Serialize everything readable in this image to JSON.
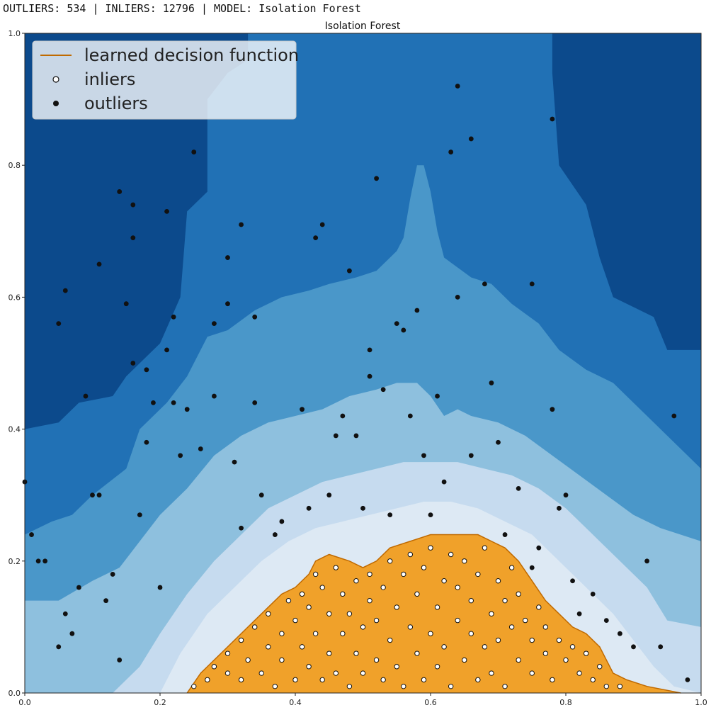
{
  "status_bar": {
    "outliers_label": "OUTLIERS:",
    "outliers_count": "534",
    "inliers_label": "INLIERS:",
    "inliers_count": "12796",
    "model_label": "MODEL:",
    "model_name": "Isolation Forest",
    "separator": "|"
  },
  "colors": {
    "level_darkest": "#0c4a8c",
    "level_dark": "#2171b5",
    "level_mid": "#4a97c9",
    "level_light": "#8ec0de",
    "level_lighter": "#c6dbef",
    "level_lightest": "#dde9f4",
    "decision_region": "#f0a12a",
    "decision_line": "#c06a00",
    "outlier_fill": "#111111",
    "inlier_fill": "#ffffff",
    "inlier_edge": "#111111"
  },
  "chart_data": {
    "type": "scatter",
    "title": "Isolation Forest",
    "xlabel": "",
    "ylabel": "",
    "xlim": [
      0.0,
      1.0
    ],
    "ylim": [
      0.0,
      1.0
    ],
    "xticks": [
      "0.0",
      "0.2",
      "0.4",
      "0.6",
      "0.8",
      "1.0"
    ],
    "yticks": [
      "0.0",
      "0.2",
      "0.4",
      "0.6",
      "0.8",
      "1.0"
    ],
    "grid": false,
    "legend": {
      "placement": "top-left",
      "entries": [
        {
          "label": "learned decision function",
          "marker": "line",
          "color": "#f0a12a"
        },
        {
          "label": "inliers",
          "marker": "open-circle",
          "color": "#ffffff"
        },
        {
          "label": "outliers",
          "marker": "filled-circle",
          "color": "#111111"
        }
      ]
    },
    "contour_levels": [
      {
        "name": "level_dark",
        "boundary": [
          [
            0.0,
            0.4
          ],
          [
            0.05,
            0.41
          ],
          [
            0.08,
            0.44
          ],
          [
            0.13,
            0.45
          ],
          [
            0.15,
            0.48
          ],
          [
            0.2,
            0.53
          ],
          [
            0.23,
            0.6
          ],
          [
            0.24,
            0.73
          ],
          [
            0.27,
            0.76
          ],
          [
            0.27,
            0.9
          ],
          [
            0.3,
            0.94
          ],
          [
            0.33,
            0.96
          ],
          [
            0.33,
            1.0
          ],
          [
            0.78,
            1.0
          ],
          [
            0.78,
            0.94
          ],
          [
            0.79,
            0.8
          ],
          [
            0.83,
            0.74
          ],
          [
            0.85,
            0.66
          ],
          [
            0.87,
            0.6
          ],
          [
            0.93,
            0.57
          ],
          [
            0.95,
            0.52
          ],
          [
            1.0,
            0.52
          ]
        ]
      },
      {
        "name": "level_mid",
        "boundary": [
          [
            0.0,
            0.24
          ],
          [
            0.04,
            0.26
          ],
          [
            0.07,
            0.27
          ],
          [
            0.1,
            0.3
          ],
          [
            0.15,
            0.34
          ],
          [
            0.17,
            0.4
          ],
          [
            0.21,
            0.44
          ],
          [
            0.24,
            0.48
          ],
          [
            0.27,
            0.54
          ],
          [
            0.3,
            0.55
          ],
          [
            0.34,
            0.58
          ],
          [
            0.38,
            0.6
          ],
          [
            0.42,
            0.61
          ],
          [
            0.45,
            0.62
          ],
          [
            0.49,
            0.63
          ],
          [
            0.52,
            0.64
          ],
          [
            0.55,
            0.67
          ],
          [
            0.56,
            0.69
          ],
          [
            0.57,
            0.75
          ],
          [
            0.58,
            0.8
          ],
          [
            0.59,
            0.8
          ],
          [
            0.6,
            0.76
          ],
          [
            0.61,
            0.7
          ],
          [
            0.62,
            0.66
          ],
          [
            0.66,
            0.63
          ],
          [
            0.69,
            0.62
          ],
          [
            0.72,
            0.59
          ],
          [
            0.76,
            0.56
          ],
          [
            0.79,
            0.52
          ],
          [
            0.83,
            0.49
          ],
          [
            0.87,
            0.47
          ],
          [
            0.9,
            0.44
          ],
          [
            0.93,
            0.41
          ],
          [
            0.96,
            0.38
          ],
          [
            1.0,
            0.34
          ]
        ]
      },
      {
        "name": "level_light",
        "boundary": [
          [
            0.0,
            0.14
          ],
          [
            0.05,
            0.14
          ],
          [
            0.1,
            0.17
          ],
          [
            0.14,
            0.19
          ],
          [
            0.17,
            0.23
          ],
          [
            0.2,
            0.27
          ],
          [
            0.24,
            0.31
          ],
          [
            0.28,
            0.36
          ],
          [
            0.32,
            0.39
          ],
          [
            0.36,
            0.41
          ],
          [
            0.4,
            0.42
          ],
          [
            0.44,
            0.43
          ],
          [
            0.48,
            0.45
          ],
          [
            0.52,
            0.46
          ],
          [
            0.55,
            0.47
          ],
          [
            0.58,
            0.47
          ],
          [
            0.6,
            0.45
          ],
          [
            0.62,
            0.42
          ],
          [
            0.64,
            0.43
          ],
          [
            0.66,
            0.42
          ],
          [
            0.7,
            0.41
          ],
          [
            0.74,
            0.39
          ],
          [
            0.78,
            0.36
          ],
          [
            0.82,
            0.33
          ],
          [
            0.86,
            0.3
          ],
          [
            0.9,
            0.27
          ],
          [
            0.94,
            0.25
          ],
          [
            1.0,
            0.23
          ]
        ]
      },
      {
        "name": "level_lighter",
        "boundary": [
          [
            0.13,
            0.0
          ],
          [
            0.17,
            0.04
          ],
          [
            0.2,
            0.09
          ],
          [
            0.24,
            0.15
          ],
          [
            0.28,
            0.2
          ],
          [
            0.32,
            0.24
          ],
          [
            0.36,
            0.28
          ],
          [
            0.4,
            0.3
          ],
          [
            0.44,
            0.32
          ],
          [
            0.48,
            0.33
          ],
          [
            0.52,
            0.34
          ],
          [
            0.56,
            0.35
          ],
          [
            0.6,
            0.35
          ],
          [
            0.64,
            0.35
          ],
          [
            0.68,
            0.34
          ],
          [
            0.72,
            0.33
          ],
          [
            0.76,
            0.31
          ],
          [
            0.8,
            0.28
          ],
          [
            0.84,
            0.24
          ],
          [
            0.88,
            0.2
          ],
          [
            0.92,
            0.16
          ],
          [
            0.95,
            0.11
          ],
          [
            1.0,
            0.1
          ]
        ]
      },
      {
        "name": "level_lightest",
        "boundary": [
          [
            0.2,
            0.0
          ],
          [
            0.23,
            0.06
          ],
          [
            0.27,
            0.12
          ],
          [
            0.31,
            0.16
          ],
          [
            0.35,
            0.2
          ],
          [
            0.39,
            0.23
          ],
          [
            0.43,
            0.25
          ],
          [
            0.47,
            0.26
          ],
          [
            0.51,
            0.27
          ],
          [
            0.55,
            0.28
          ],
          [
            0.59,
            0.29
          ],
          [
            0.63,
            0.29
          ],
          [
            0.67,
            0.28
          ],
          [
            0.71,
            0.26
          ],
          [
            0.75,
            0.24
          ],
          [
            0.79,
            0.2
          ],
          [
            0.83,
            0.16
          ],
          [
            0.87,
            0.12
          ],
          [
            0.9,
            0.08
          ],
          [
            0.93,
            0.04
          ],
          [
            0.96,
            0.01
          ],
          [
            1.0,
            0.0
          ]
        ]
      }
    ],
    "decision_region": [
      [
        0.24,
        0.0
      ],
      [
        0.26,
        0.03
      ],
      [
        0.29,
        0.06
      ],
      [
        0.31,
        0.08
      ],
      [
        0.34,
        0.11
      ],
      [
        0.36,
        0.13
      ],
      [
        0.38,
        0.15
      ],
      [
        0.4,
        0.16
      ],
      [
        0.42,
        0.18
      ],
      [
        0.43,
        0.2
      ],
      [
        0.45,
        0.21
      ],
      [
        0.48,
        0.2
      ],
      [
        0.5,
        0.19
      ],
      [
        0.52,
        0.2
      ],
      [
        0.54,
        0.22
      ],
      [
        0.57,
        0.23
      ],
      [
        0.6,
        0.24
      ],
      [
        0.63,
        0.24
      ],
      [
        0.67,
        0.24
      ],
      [
        0.69,
        0.23
      ],
      [
        0.71,
        0.22
      ],
      [
        0.73,
        0.2
      ],
      [
        0.75,
        0.17
      ],
      [
        0.77,
        0.14
      ],
      [
        0.79,
        0.12
      ],
      [
        0.81,
        0.1
      ],
      [
        0.83,
        0.09
      ],
      [
        0.85,
        0.07
      ],
      [
        0.87,
        0.03
      ],
      [
        0.89,
        0.02
      ],
      [
        0.92,
        0.01
      ],
      [
        0.97,
        0.0
      ]
    ],
    "outliers": [
      [
        0.0,
        0.32
      ],
      [
        0.01,
        0.24
      ],
      [
        0.02,
        0.2
      ],
      [
        0.03,
        0.2
      ],
      [
        0.05,
        0.07
      ],
      [
        0.06,
        0.61
      ],
      [
        0.05,
        0.56
      ],
      [
        0.06,
        0.12
      ],
      [
        0.07,
        0.09
      ],
      [
        0.08,
        0.16
      ],
      [
        0.09,
        0.45
      ],
      [
        0.1,
        0.3
      ],
      [
        0.11,
        0.3
      ],
      [
        0.11,
        0.65
      ],
      [
        0.12,
        0.14
      ],
      [
        0.13,
        0.18
      ],
      [
        0.14,
        0.05
      ],
      [
        0.14,
        0.76
      ],
      [
        0.15,
        0.59
      ],
      [
        0.16,
        0.69
      ],
      [
        0.16,
        0.74
      ],
      [
        0.16,
        0.5
      ],
      [
        0.17,
        0.27
      ],
      [
        0.18,
        0.49
      ],
      [
        0.18,
        0.38
      ],
      [
        0.19,
        0.44
      ],
      [
        0.2,
        0.16
      ],
      [
        0.21,
        0.73
      ],
      [
        0.21,
        0.52
      ],
      [
        0.22,
        0.57
      ],
      [
        0.22,
        0.44
      ],
      [
        0.23,
        0.36
      ],
      [
        0.24,
        0.43
      ],
      [
        0.25,
        0.82
      ],
      [
        0.26,
        0.37
      ],
      [
        0.28,
        0.56
      ],
      [
        0.28,
        0.45
      ],
      [
        0.3,
        0.66
      ],
      [
        0.3,
        0.59
      ],
      [
        0.31,
        0.35
      ],
      [
        0.32,
        0.71
      ],
      [
        0.32,
        0.25
      ],
      [
        0.34,
        0.57
      ],
      [
        0.34,
        0.44
      ],
      [
        0.35,
        0.3
      ],
      [
        0.37,
        0.24
      ],
      [
        0.38,
        0.26
      ],
      [
        0.41,
        0.43
      ],
      [
        0.42,
        0.28
      ],
      [
        0.43,
        0.69
      ],
      [
        0.44,
        0.71
      ],
      [
        0.45,
        0.3
      ],
      [
        0.46,
        0.39
      ],
      [
        0.47,
        0.42
      ],
      [
        0.48,
        0.64
      ],
      [
        0.49,
        0.39
      ],
      [
        0.5,
        0.28
      ],
      [
        0.51,
        0.52
      ],
      [
        0.51,
        0.48
      ],
      [
        0.52,
        0.78
      ],
      [
        0.53,
        0.46
      ],
      [
        0.54,
        0.27
      ],
      [
        0.55,
        0.56
      ],
      [
        0.56,
        0.55
      ],
      [
        0.57,
        0.42
      ],
      [
        0.58,
        0.58
      ],
      [
        0.59,
        0.36
      ],
      [
        0.6,
        0.27
      ],
      [
        0.61,
        0.45
      ],
      [
        0.62,
        0.32
      ],
      [
        0.63,
        0.82
      ],
      [
        0.64,
        0.92
      ],
      [
        0.64,
        0.6
      ],
      [
        0.66,
        0.36
      ],
      [
        0.66,
        0.84
      ],
      [
        0.68,
        0.62
      ],
      [
        0.69,
        0.47
      ],
      [
        0.7,
        0.38
      ],
      [
        0.71,
        0.24
      ],
      [
        0.73,
        0.31
      ],
      [
        0.75,
        0.19
      ],
      [
        0.75,
        0.62
      ],
      [
        0.76,
        0.22
      ],
      [
        0.78,
        0.87
      ],
      [
        0.78,
        0.43
      ],
      [
        0.79,
        0.28
      ],
      [
        0.8,
        0.3
      ],
      [
        0.81,
        0.17
      ],
      [
        0.82,
        0.12
      ],
      [
        0.84,
        0.15
      ],
      [
        0.86,
        0.11
      ],
      [
        0.88,
        0.09
      ],
      [
        0.9,
        0.07
      ],
      [
        0.92,
        0.2
      ],
      [
        0.94,
        0.07
      ],
      [
        0.96,
        0.42
      ],
      [
        0.98,
        0.02
      ]
    ],
    "inliers": [
      [
        0.25,
        0.01
      ],
      [
        0.27,
        0.02
      ],
      [
        0.28,
        0.04
      ],
      [
        0.3,
        0.03
      ],
      [
        0.3,
        0.06
      ],
      [
        0.32,
        0.02
      ],
      [
        0.32,
        0.08
      ],
      [
        0.33,
        0.05
      ],
      [
        0.34,
        0.1
      ],
      [
        0.35,
        0.03
      ],
      [
        0.36,
        0.07
      ],
      [
        0.36,
        0.12
      ],
      [
        0.37,
        0.01
      ],
      [
        0.38,
        0.05
      ],
      [
        0.38,
        0.09
      ],
      [
        0.39,
        0.14
      ],
      [
        0.4,
        0.02
      ],
      [
        0.4,
        0.11
      ],
      [
        0.41,
        0.07
      ],
      [
        0.41,
        0.15
      ],
      [
        0.42,
        0.04
      ],
      [
        0.42,
        0.13
      ],
      [
        0.43,
        0.09
      ],
      [
        0.43,
        0.18
      ],
      [
        0.44,
        0.02
      ],
      [
        0.44,
        0.16
      ],
      [
        0.45,
        0.06
      ],
      [
        0.45,
        0.12
      ],
      [
        0.46,
        0.19
      ],
      [
        0.46,
        0.03
      ],
      [
        0.47,
        0.09
      ],
      [
        0.47,
        0.15
      ],
      [
        0.48,
        0.01
      ],
      [
        0.48,
        0.12
      ],
      [
        0.49,
        0.06
      ],
      [
        0.49,
        0.17
      ],
      [
        0.5,
        0.03
      ],
      [
        0.5,
        0.1
      ],
      [
        0.51,
        0.14
      ],
      [
        0.51,
        0.18
      ],
      [
        0.52,
        0.05
      ],
      [
        0.52,
        0.11
      ],
      [
        0.53,
        0.02
      ],
      [
        0.53,
        0.16
      ],
      [
        0.54,
        0.08
      ],
      [
        0.54,
        0.2
      ],
      [
        0.55,
        0.04
      ],
      [
        0.55,
        0.13
      ],
      [
        0.56,
        0.18
      ],
      [
        0.56,
        0.01
      ],
      [
        0.57,
        0.1
      ],
      [
        0.57,
        0.21
      ],
      [
        0.58,
        0.06
      ],
      [
        0.58,
        0.15
      ],
      [
        0.59,
        0.02
      ],
      [
        0.59,
        0.19
      ],
      [
        0.6,
        0.09
      ],
      [
        0.6,
        0.22
      ],
      [
        0.61,
        0.04
      ],
      [
        0.61,
        0.13
      ],
      [
        0.62,
        0.17
      ],
      [
        0.62,
        0.07
      ],
      [
        0.63,
        0.01
      ],
      [
        0.63,
        0.21
      ],
      [
        0.64,
        0.11
      ],
      [
        0.64,
        0.16
      ],
      [
        0.65,
        0.05
      ],
      [
        0.65,
        0.2
      ],
      [
        0.66,
        0.09
      ],
      [
        0.66,
        0.14
      ],
      [
        0.67,
        0.02
      ],
      [
        0.67,
        0.18
      ],
      [
        0.68,
        0.07
      ],
      [
        0.68,
        0.22
      ],
      [
        0.69,
        0.12
      ],
      [
        0.69,
        0.03
      ],
      [
        0.7,
        0.17
      ],
      [
        0.7,
        0.08
      ],
      [
        0.71,
        0.14
      ],
      [
        0.71,
        0.01
      ],
      [
        0.72,
        0.1
      ],
      [
        0.72,
        0.19
      ],
      [
        0.73,
        0.05
      ],
      [
        0.73,
        0.15
      ],
      [
        0.74,
        0.11
      ],
      [
        0.75,
        0.03
      ],
      [
        0.75,
        0.08
      ],
      [
        0.76,
        0.13
      ],
      [
        0.77,
        0.06
      ],
      [
        0.77,
        0.1
      ],
      [
        0.78,
        0.02
      ],
      [
        0.79,
        0.08
      ],
      [
        0.8,
        0.05
      ],
      [
        0.81,
        0.07
      ],
      [
        0.82,
        0.03
      ],
      [
        0.83,
        0.06
      ],
      [
        0.84,
        0.02
      ],
      [
        0.85,
        0.04
      ],
      [
        0.86,
        0.01
      ],
      [
        0.88,
        0.01
      ]
    ]
  }
}
